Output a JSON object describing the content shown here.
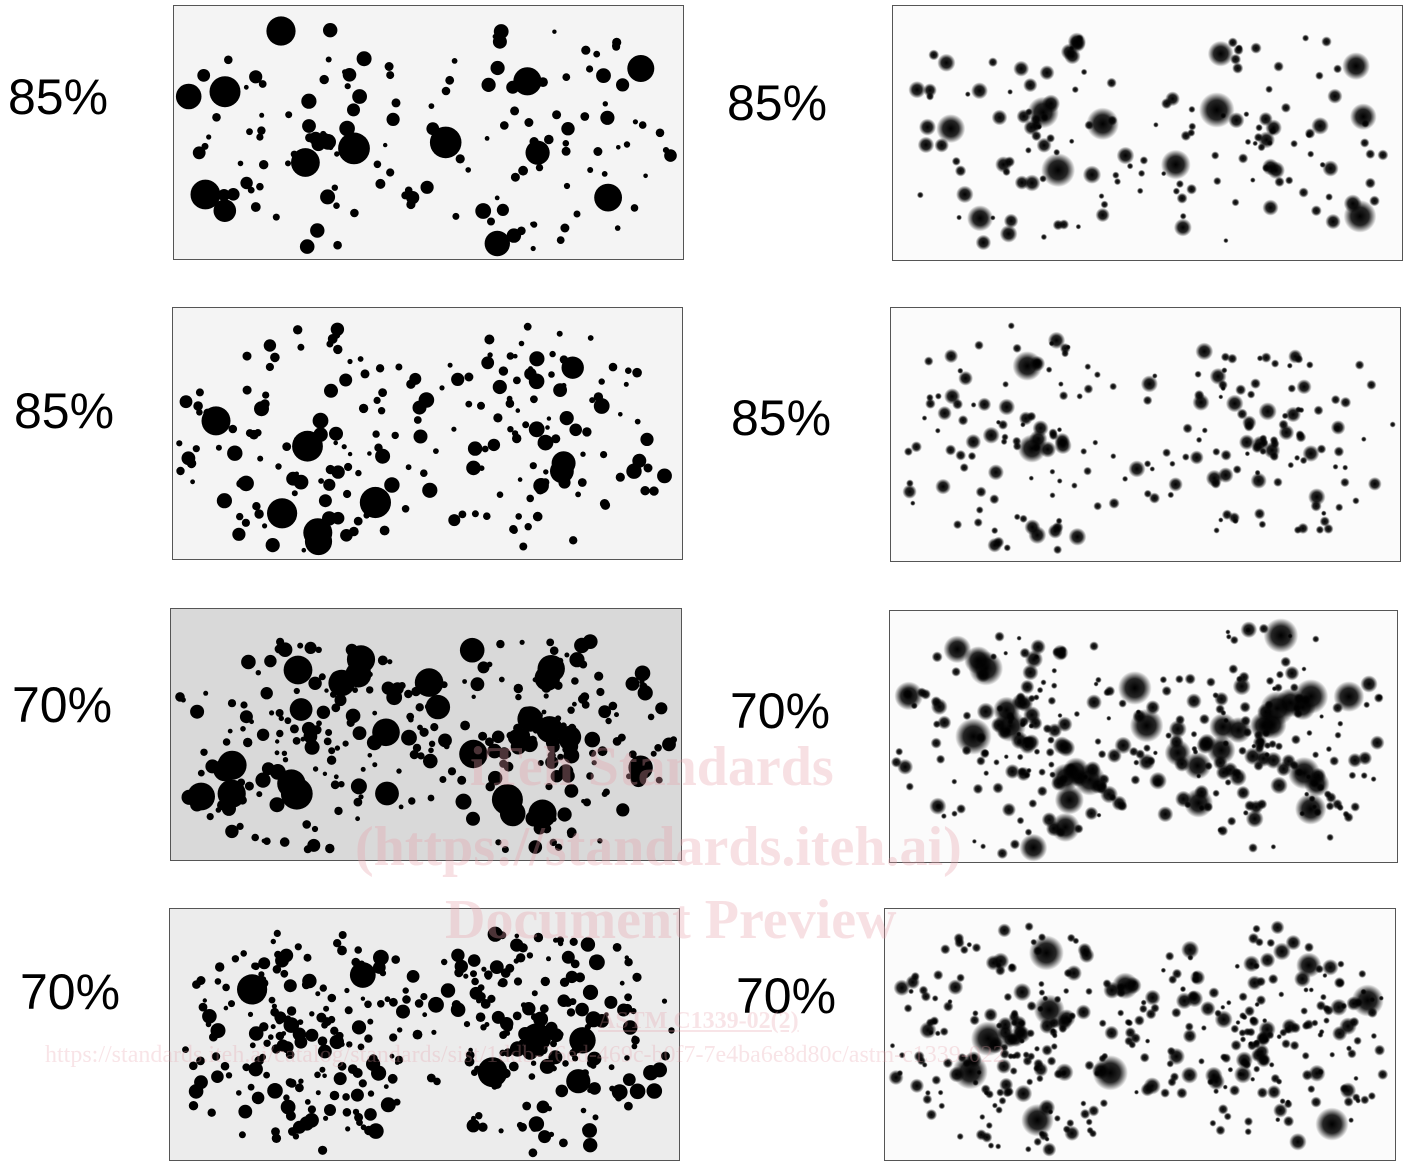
{
  "labels": {
    "row1_left": "85%",
    "row1_right": "85%",
    "row2_left": "85%",
    "row2_right": "85%",
    "row3_left": "70%",
    "row3_right": "70%",
    "row4_left": "70%",
    "row4_right": "70%"
  },
  "watermark": {
    "line1": "iTeh Standards",
    "line2": "(https://standards.iteh.ai)",
    "line3": "Document Preview",
    "line4": "ASTM C1339-02(2)",
    "line5": "https://standards.iteh.ai/catalog/standards/sist/1ddb-26ed-469c-b0f7-7e4ba6e8d80c/astm-c1339-022"
  },
  "colors": {
    "dot": "#000000",
    "watermark": "#e8a0aa",
    "panel_border": "#555555"
  }
}
